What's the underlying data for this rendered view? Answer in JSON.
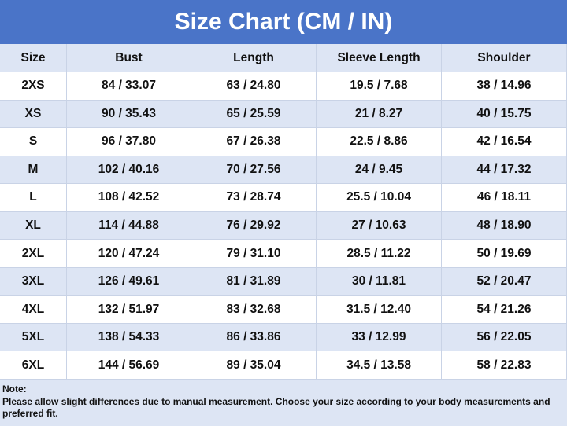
{
  "title": "Size Chart (CM / IN)",
  "table": {
    "header": [
      "Size",
      "Bust",
      "Length",
      "Sleeve Length",
      "Shoulder"
    ],
    "rows": [
      [
        "2XS",
        "84 / 33.07",
        "63 / 24.80",
        "19.5 / 7.68",
        "38 / 14.96"
      ],
      [
        "XS",
        "90 / 35.43",
        "65 / 25.59",
        "21 / 8.27",
        "40 / 15.75"
      ],
      [
        "S",
        "96 / 37.80",
        "67 / 26.38",
        "22.5 / 8.86",
        "42 / 16.54"
      ],
      [
        "M",
        "102 / 40.16",
        "70 / 27.56",
        "24 / 9.45",
        "44 / 17.32"
      ],
      [
        "L",
        "108 / 42.52",
        "73 / 28.74",
        "25.5 / 10.04",
        "46 / 18.11"
      ],
      [
        "XL",
        "114 / 44.88",
        "76 / 29.92",
        "27 / 10.63",
        "48 / 18.90"
      ],
      [
        "2XL",
        "120 / 47.24",
        "79 / 31.10",
        "28.5 / 11.22",
        "50 / 19.69"
      ],
      [
        "3XL",
        "126 / 49.61",
        "81 / 31.89",
        "30 / 11.81",
        "52 / 20.47"
      ],
      [
        "4XL",
        "132 / 51.97",
        "83 / 32.68",
        "31.5 / 12.40",
        "54 / 21.26"
      ],
      [
        "5XL",
        "138 / 54.33",
        "86 / 33.86",
        "33 / 12.99",
        "56 / 22.05"
      ],
      [
        "6XL",
        "144 / 56.69",
        "89 / 35.04",
        "34.5 / 13.58",
        "58 / 22.83"
      ]
    ]
  },
  "note": {
    "label": "Note:",
    "text": "Please allow slight differences due to manual measurement. Choose your size according to your body measurements and preferred fit."
  }
}
